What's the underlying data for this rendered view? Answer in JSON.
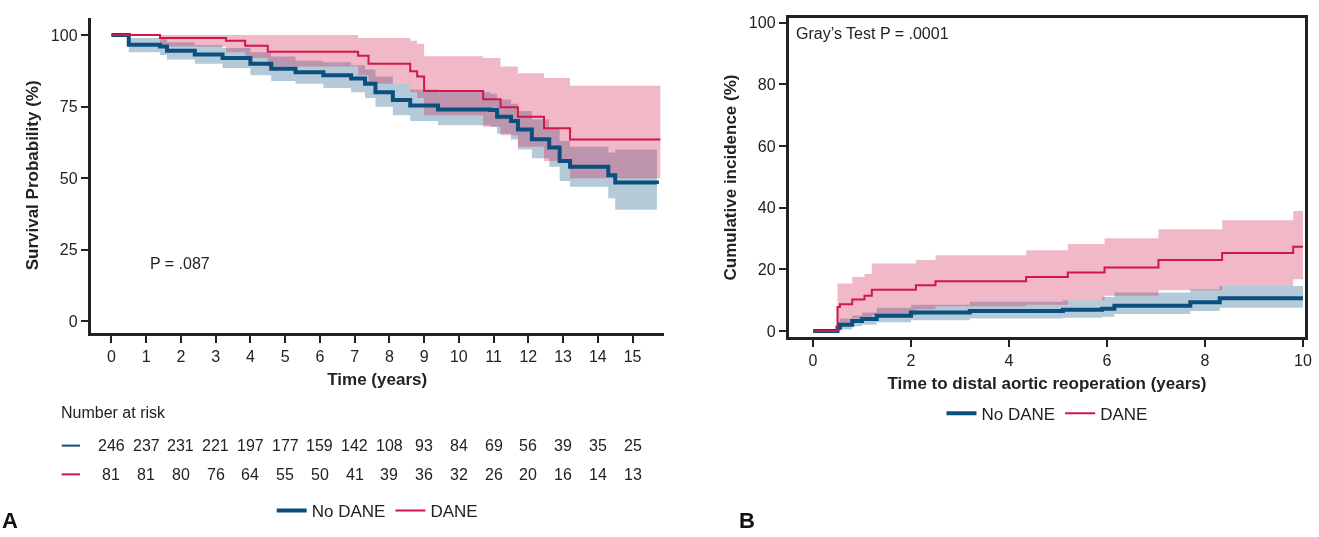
{
  "chart_data": [
    {
      "type": "step",
      "xlabel": "Time (years)",
      "ylabel": "Survival Probability (%)",
      "xlim": [
        -0.6,
        15.9
      ],
      "xticks": [
        0,
        1,
        2,
        3,
        4,
        5,
        6,
        7,
        8,
        9,
        10,
        11,
        12,
        13,
        14,
        15
      ],
      "ylim": [
        -4,
        106
      ],
      "yticks": [
        0,
        25,
        50,
        75,
        100
      ],
      "legend": "bottom",
      "annotations": [
        "P = .087",
        "Number at risk",
        "246 237 231 221 197 177 159 142 108 93 84 69 56 39 35 25",
        "81 81 80 76 64 55 50 41 39 36 32 26 20 16 14 13",
        "A"
      ],
      "series": [
        {
          "name": "No DANE",
          "color": "#0b4f7e",
          "x": [
            0,
            0.5,
            1.4,
            1.6,
            2.4,
            3.2,
            4.0,
            4.6,
            5.3,
            6.1,
            6.9,
            7.3,
            7.6,
            8.1,
            8.6,
            9.4,
            10.9,
            11.1,
            11.5,
            11.7,
            12.1,
            12.6,
            12.9,
            13.2,
            14.3,
            14.5,
            15.7
          ],
          "values": [
            100,
            96.6,
            96,
            94.5,
            93.2,
            92,
            90,
            88.2,
            87,
            86,
            84.8,
            83,
            80,
            77.3,
            75.4,
            74,
            73.8,
            71.5,
            70,
            67,
            63.6,
            60.7,
            56,
            54,
            51,
            48.5,
            48
          ],
          "lower": [
            100,
            94,
            93,
            91.5,
            90,
            88.5,
            86,
            84,
            83,
            81.5,
            80,
            78,
            75,
            72,
            70,
            68.5,
            68,
            65.5,
            63.5,
            60,
            57,
            54,
            49,
            47,
            43,
            39,
            39
          ],
          "upper": [
            100,
            99,
            99,
            97.5,
            96.5,
            95.5,
            94,
            92.5,
            91,
            90.5,
            89.5,
            88,
            85.5,
            83,
            81,
            80,
            79.5,
            77.5,
            76,
            73.5,
            70.5,
            67.5,
            63,
            61,
            59,
            60,
            60
          ]
        },
        {
          "name": "DANE",
          "color": "#d0174a",
          "x": [
            0,
            1.4,
            3.3,
            3.85,
            4.5,
            7.1,
            7.4,
            8.6,
            8.8,
            9.0,
            10.7,
            11.2,
            11.7,
            12.45,
            13.2,
            15.8
          ],
          "values": [
            100,
            99,
            98,
            96.3,
            94.2,
            92.8,
            90,
            87.4,
            85.5,
            80.5,
            77.6,
            74.8,
            71.5,
            67.5,
            63.5,
            63.5
          ],
          "lower": [
            100,
            96,
            94,
            92,
            89,
            86,
            83,
            80,
            78,
            72,
            68,
            65,
            61,
            56,
            50,
            48.8
          ],
          "upper": [
            100,
            100,
            100,
            100,
            100,
            99,
            99,
            98,
            97,
            92.6,
            92,
            89,
            86.7,
            85,
            82.3,
            82.3
          ]
        }
      ]
    },
    {
      "type": "step",
      "xlabel": "Time to distal aortic reoperation (years)",
      "ylabel": "Cumulative incidence (%)",
      "xlim": [
        -0.5,
        10.05
      ],
      "xticks": [
        0,
        2,
        4,
        6,
        8,
        10
      ],
      "ylim": [
        -2,
        101.6
      ],
      "yticks": [
        0,
        20,
        40,
        60,
        80,
        100
      ],
      "legend": "bottom",
      "annotations": [
        "Gray’s Test P = .0001",
        "B"
      ],
      "series": [
        {
          "name": "No DANE",
          "color": "#0b4f7e",
          "x": [
            0,
            0.43,
            0.5,
            0.55,
            0.8,
            1.0,
            1.3,
            2.0,
            3.2,
            5.1,
            5.9,
            6.15,
            7.7,
            8.3,
            10
          ],
          "values": [
            0,
            0,
            1,
            2,
            3.2,
            3.9,
            4.9,
            6,
            6.5,
            6.9,
            7.2,
            8.2,
            9.3,
            10.6,
            10.6
          ],
          "lower": [
            0,
            0,
            0,
            0.5,
            1.5,
            2,
            2.8,
            3.5,
            4,
            4.3,
            4.6,
            5.5,
            6.5,
            7.5,
            7.6
          ],
          "upper": [
            0,
            0,
            3,
            4,
            5,
            6,
            7.5,
            8.5,
            9.5,
            10,
            11,
            12.5,
            13.5,
            14.6,
            15
          ]
        },
        {
          "name": "DANE",
          "color": "#d0174a",
          "x": [
            0,
            0.43,
            0.5,
            0.55,
            0.8,
            1.05,
            1.2,
            2.1,
            2.5,
            4.35,
            5.2,
            5.95,
            7.05,
            8.35,
            9.8,
            10
          ],
          "values": [
            0,
            0,
            7.8,
            8.7,
            10.2,
            11.4,
            13.4,
            14.8,
            16.1,
            17.5,
            19,
            20.6,
            23,
            25.3,
            27.3,
            27.3
          ],
          "lower": [
            0,
            0,
            2,
            2.5,
            4,
            4.5,
            5,
            7,
            8,
            8.5,
            10,
            11.4,
            13.2,
            14.6,
            16.8,
            16.8
          ],
          "upper": [
            0,
            0,
            15.4,
            15.4,
            17.5,
            18.5,
            21.9,
            23,
            24.6,
            26.2,
            28.2,
            30.1,
            33,
            35.9,
            38.9,
            38.9
          ]
        }
      ]
    }
  ]
}
